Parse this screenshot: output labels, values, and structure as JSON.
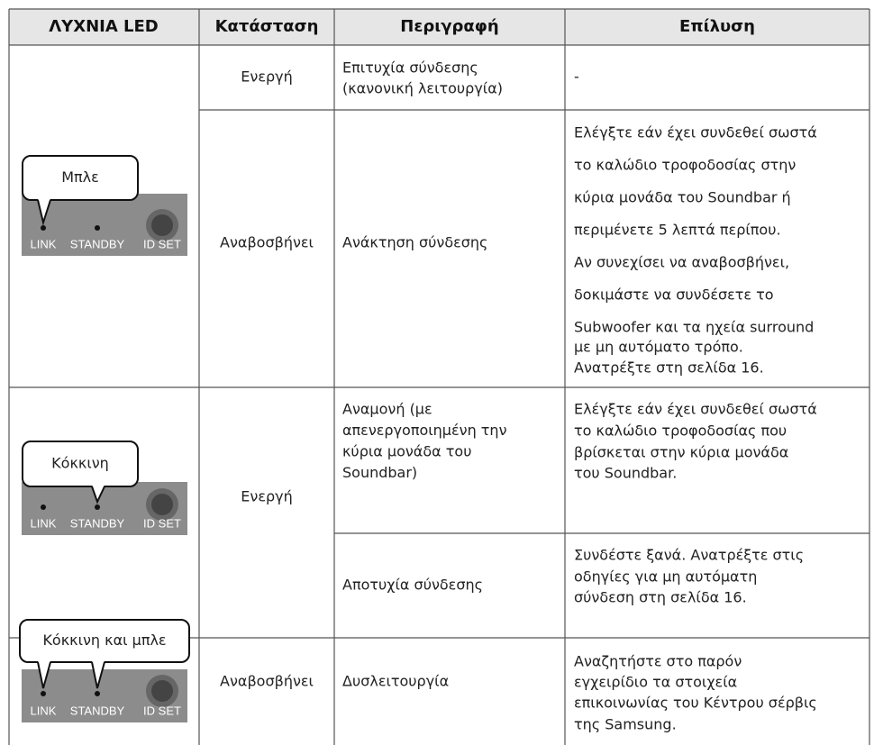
{
  "table": {
    "header": [
      "ΛΥΧΝΙΑ LED",
      "Κατάσταση",
      "Περιγραφή",
      "Επίλυση"
    ],
    "leds": [
      {
        "bubble": "Μπλε",
        "labels": [
          "LINK",
          "STANDBY",
          "ID SET"
        ]
      },
      {
        "bubble": "Κόκκινη",
        "labels": [
          "LINK",
          "STANDBY",
          "ID SET"
        ]
      },
      {
        "bubble": "Κόκκινη και μπλε",
        "labels": [
          "LINK",
          "STANDBY",
          "ID SET"
        ]
      }
    ],
    "status": [
      "Ενεργή",
      "Αναβοσβήνει",
      "Ενεργή",
      "Αναβοσβήνει"
    ],
    "rows": [
      {
        "description": [
          "Επιτυχία σύνδεσης",
          "(κανονική λειτουργία)"
        ],
        "resolution": [
          "-"
        ]
      },
      {
        "description": [
          "Ανάκτηση σύνδεσης"
        ],
        "resolution": [
          "Ελέγξτε εάν έχει συνδεθεί σωστά",
          "το καλώδιο τροφοδοσίας στην",
          "κύρια μονάδα του Soundbar ή",
          "περιμένετε 5 λεπτά περίπου.",
          "Αν συνεχίσει να αναβοσβήνει,",
          "δοκιμάστε να συνδέσετε το",
          "Subwoofer και τα ηχεία surround",
          "με μη αυτόματο τρόπο.",
          "Ανατρέξτε στη σελίδα 16."
        ]
      },
      {
        "description": [
          "Αναμονή (με",
          "απενεργοποιημένη την",
          "κύρια μονάδα του",
          "Soundbar)"
        ],
        "resolution": [
          "Ελέγξτε εάν έχει συνδεθεί σωστά",
          "το καλώδιο τροφοδοσίας που",
          "βρίσκεται στην κύρια μονάδα",
          "του Soundbar."
        ]
      },
      {
        "description": [
          "Αποτυχία σύνδεσης"
        ],
        "resolution": [
          "Συνδέστε ξανά. Ανατρέξτε στις",
          "οδηγίες για μη αυτόματη",
          "σύνδεση στη σελίδα 16."
        ]
      },
      {
        "description": [
          "Δυσλειτουργία"
        ],
        "resolution": [
          "Αναζητήστε στο παρόν",
          "εγχειρίδιο τα στοιχεία",
          "επικοινωνίας του Κέντρου σέρβις",
          "της Samsung."
        ]
      }
    ]
  }
}
